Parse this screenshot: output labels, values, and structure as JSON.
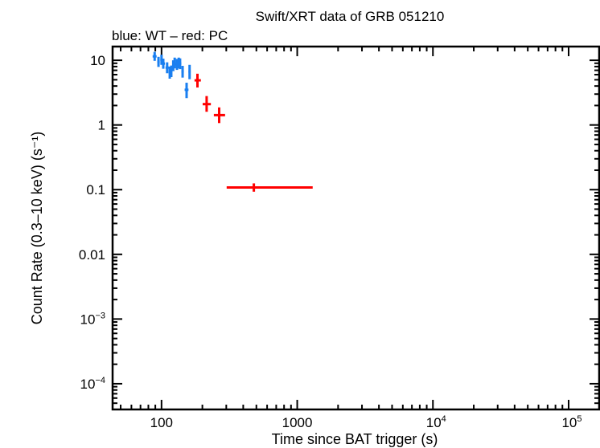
{
  "chart_data": {
    "type": "scatter",
    "title": "Swift/XRT data of GRB 051210",
    "subtitle": "blue: WT – red: PC",
    "xlabel": "Time since BAT trigger (s)",
    "ylabel": "Count Rate (0.3–10 keV) (s⁻¹)",
    "xscale": "log",
    "yscale": "log",
    "xlim": [
      43.6,
      168000
    ],
    "ylim": [
      4e-05,
      16.3
    ],
    "grid": false,
    "x_ticks": [
      {
        "value": 100,
        "label": "100"
      },
      {
        "value": 1000,
        "label": "1000"
      },
      {
        "value": 10000,
        "base": "10",
        "exp": "4"
      },
      {
        "value": 100000,
        "base": "10",
        "exp": "5"
      }
    ],
    "y_ticks": [
      {
        "value": 10,
        "label": "10"
      },
      {
        "value": 1,
        "label": "1"
      },
      {
        "value": 0.1,
        "label": "0.1"
      },
      {
        "value": 0.01,
        "label": "0.01"
      },
      {
        "value": 0.001,
        "base": "10",
        "exp": "−3"
      },
      {
        "value": 0.0001,
        "base": "10",
        "exp": "−4"
      }
    ],
    "series": [
      {
        "name": "WT",
        "color": "#1a7ff0",
        "points": [
          {
            "x": 89,
            "y": 11.5,
            "xlo": 86,
            "xhi": 92,
            "ylo": 9.8,
            "yhi": 13.5
          },
          {
            "x": 95,
            "y": 9.5,
            "xlo": 93,
            "xhi": 97,
            "ylo": 7.9,
            "yhi": 11.3
          },
          {
            "x": 100,
            "y": 10.2,
            "xlo": 98,
            "xhi": 102,
            "ylo": 8.5,
            "yhi": 12.2
          },
          {
            "x": 103,
            "y": 8.9,
            "xlo": 101,
            "xhi": 106,
            "ylo": 7.4,
            "yhi": 10.6
          },
          {
            "x": 110,
            "y": 7.7,
            "xlo": 107,
            "xhi": 113,
            "ylo": 6.3,
            "yhi": 9.3
          },
          {
            "x": 115,
            "y": 6.5,
            "xlo": 113,
            "xhi": 117,
            "ylo": 5.2,
            "yhi": 8.0
          },
          {
            "x": 118,
            "y": 6.8,
            "xlo": 116,
            "xhi": 120,
            "ylo": 5.5,
            "yhi": 8.3
          },
          {
            "x": 122,
            "y": 8.3,
            "xlo": 120,
            "xhi": 124,
            "ylo": 6.8,
            "yhi": 10.0
          },
          {
            "x": 125,
            "y": 9.1,
            "xlo": 123,
            "xhi": 127,
            "ylo": 7.5,
            "yhi": 11.0
          },
          {
            "x": 130,
            "y": 8.7,
            "xlo": 127,
            "xhi": 133,
            "ylo": 7.1,
            "yhi": 10.5
          },
          {
            "x": 134,
            "y": 9.1,
            "xlo": 132,
            "xhi": 136,
            "ylo": 7.5,
            "yhi": 11.0
          },
          {
            "x": 137,
            "y": 8.9,
            "xlo": 135,
            "xhi": 140,
            "ylo": 7.3,
            "yhi": 10.7
          },
          {
            "x": 143,
            "y": 6.7,
            "xlo": 140,
            "xhi": 146,
            "ylo": 5.4,
            "yhi": 8.2
          },
          {
            "x": 153,
            "y": 3.5,
            "xlo": 148,
            "xhi": 158,
            "ylo": 2.6,
            "yhi": 4.5
          },
          {
            "x": 161,
            "y": 6.7,
            "xlo": 158,
            "xhi": 164,
            "ylo": 5.1,
            "yhi": 8.5
          }
        ]
      },
      {
        "name": "PC",
        "color": "#ff0000",
        "points": [
          {
            "x": 184,
            "y": 4.9,
            "xlo": 175,
            "xhi": 195,
            "ylo": 3.8,
            "yhi": 6.2
          },
          {
            "x": 215,
            "y": 2.1,
            "xlo": 201,
            "xhi": 231,
            "ylo": 1.6,
            "yhi": 2.8
          },
          {
            "x": 266,
            "y": 1.42,
            "xlo": 243,
            "xhi": 294,
            "ylo": 1.07,
            "yhi": 1.87
          },
          {
            "x": 479,
            "y": 0.108,
            "xlo": 302,
            "xhi": 1300,
            "ylo": 0.093,
            "yhi": 0.125
          }
        ]
      }
    ]
  }
}
